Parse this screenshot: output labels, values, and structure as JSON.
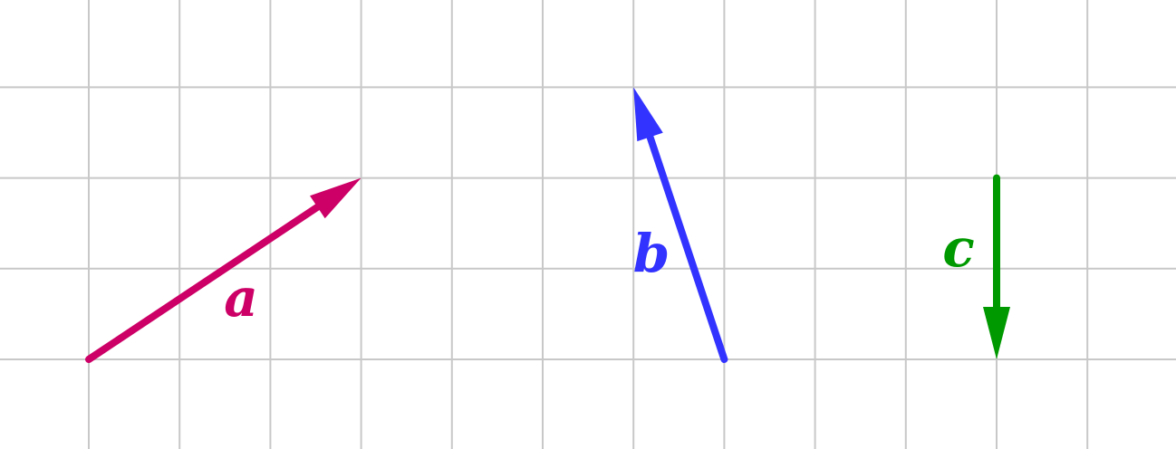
{
  "grid": {
    "line_color": "#c8c8c8"
  },
  "vectors": [
    {
      "id": "a",
      "label": "a",
      "color": "#cc0066",
      "from": [
        0,
        0
      ],
      "to": [
        3,
        2
      ]
    },
    {
      "id": "b",
      "label": "b",
      "color": "#3333ff",
      "from": [
        7,
        0
      ],
      "to": [
        6,
        3
      ]
    },
    {
      "id": "c",
      "label": "c",
      "color": "#009900",
      "from": [
        10,
        2
      ],
      "to": [
        10,
        0
      ]
    }
  ]
}
